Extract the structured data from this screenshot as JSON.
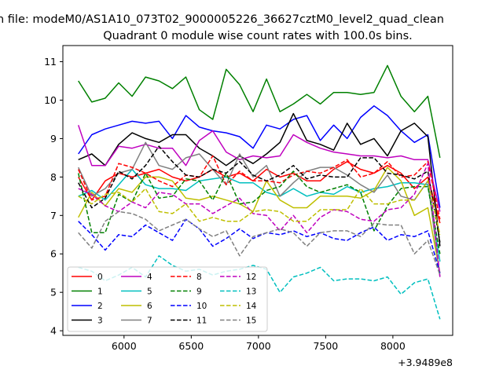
{
  "chart_data": {
    "type": "line",
    "suptitle": "n file: modeM0/AS1A10_073T02_9000005226_36627cztM0_level2_quad_clean",
    "title": "Quadrant 0 module wise count rates with 100.0s bins.",
    "xlabel": "",
    "ylabel": "",
    "x_offset_label": "+3.9489e8",
    "xlim": [
      5545,
      8445
    ],
    "ylim": [
      3.88,
      11.42
    ],
    "x_ticks": [
      6000,
      6500,
      7000,
      7500,
      8000
    ],
    "x_tick_labels": [
      "6000",
      "6500",
      "7000",
      "7500",
      "8000"
    ],
    "y_ticks": [
      4,
      5,
      6,
      7,
      8,
      9,
      10,
      11
    ],
    "y_tick_labels": [
      "4",
      "5",
      "6",
      "7",
      "8",
      "9",
      "10",
      "11"
    ],
    "legend_position": "lower-left",
    "x": [
      5660,
      5760,
      5860,
      5960,
      6060,
      6160,
      6260,
      6360,
      6460,
      6560,
      6660,
      6760,
      6860,
      6960,
      7060,
      7160,
      7260,
      7360,
      7460,
      7560,
      7660,
      7760,
      7860,
      7960,
      8060,
      8160,
      8260,
      8350
    ],
    "series": [
      {
        "name": "0",
        "color": "#ff0000",
        "dash": "solid",
        "values": [
          8.0,
          7.4,
          7.9,
          8.1,
          8.0,
          8.1,
          8.2,
          8.0,
          7.9,
          8.0,
          8.2,
          8.0,
          8.1,
          7.9,
          8.2,
          8.0,
          8.1,
          7.9,
          7.9,
          8.2,
          8.4,
          8.2,
          8.1,
          8.3,
          8.1,
          7.7,
          8.0,
          6.8
        ]
      },
      {
        "name": "1",
        "color": "#008000",
        "dash": "solid",
        "values": [
          10.5,
          9.95,
          10.05,
          10.45,
          10.1,
          10.6,
          10.5,
          10.3,
          10.6,
          9.75,
          9.5,
          10.8,
          10.4,
          9.7,
          10.55,
          9.7,
          9.9,
          10.15,
          9.9,
          10.2,
          10.2,
          10.15,
          10.2,
          10.9,
          10.1,
          9.7,
          10.1,
          8.5
        ]
      },
      {
        "name": "2",
        "color": "#0000ff",
        "dash": "solid",
        "values": [
          8.6,
          9.1,
          9.25,
          9.35,
          9.45,
          9.4,
          9.45,
          9.0,
          9.6,
          9.3,
          9.2,
          9.15,
          9.05,
          8.75,
          9.35,
          9.25,
          9.5,
          9.6,
          8.95,
          9.35,
          9.0,
          9.55,
          9.85,
          9.6,
          9.2,
          8.9,
          9.1,
          7.2
        ]
      },
      {
        "name": "3",
        "color": "#000000",
        "dash": "solid",
        "values": [
          8.45,
          8.6,
          8.3,
          8.85,
          9.15,
          9.0,
          8.9,
          9.1,
          9.1,
          8.75,
          8.55,
          8.3,
          8.55,
          8.35,
          8.6,
          8.9,
          9.65,
          8.95,
          8.85,
          8.7,
          9.4,
          8.85,
          9.0,
          8.55,
          9.2,
          9.4,
          9.05,
          6.2
        ]
      },
      {
        "name": "4",
        "color": "#bf00bf",
        "dash": "solid",
        "values": [
          9.35,
          8.3,
          8.3,
          8.8,
          8.75,
          8.85,
          8.75,
          8.75,
          8.3,
          8.95,
          9.2,
          8.65,
          8.45,
          8.55,
          8.5,
          8.55,
          9.1,
          8.9,
          8.75,
          8.65,
          8.6,
          8.55,
          8.55,
          8.5,
          8.55,
          8.45,
          8.45,
          7.1
        ]
      },
      {
        "name": "5",
        "color": "#00bfbf",
        "dash": "solid",
        "values": [
          7.5,
          7.65,
          7.4,
          7.8,
          8.2,
          7.8,
          7.7,
          7.7,
          7.65,
          7.9,
          7.95,
          8.0,
          7.85,
          7.85,
          7.6,
          7.5,
          7.7,
          7.5,
          7.6,
          7.55,
          7.75,
          7.6,
          7.7,
          7.75,
          7.85,
          7.85,
          7.8,
          5.8
        ]
      },
      {
        "name": "6",
        "color": "#bfbf00",
        "dash": "solid",
        "values": [
          6.95,
          7.6,
          7.25,
          7.7,
          7.6,
          8.0,
          8.0,
          7.9,
          7.45,
          7.4,
          7.5,
          7.4,
          7.3,
          7.1,
          7.9,
          7.4,
          7.2,
          7.2,
          7.5,
          7.5,
          7.5,
          7.45,
          7.65,
          8.25,
          7.9,
          7.0,
          7.2,
          5.5
        ]
      },
      {
        "name": "7",
        "color": "#808080",
        "dash": "solid",
        "values": [
          8.25,
          7.5,
          7.7,
          8.1,
          8.2,
          8.9,
          8.3,
          8.2,
          8.5,
          8.6,
          8.2,
          7.8,
          8.6,
          8.0,
          8.3,
          7.5,
          7.85,
          8.15,
          8.25,
          8.25,
          8.05,
          7.8,
          7.6,
          8.05,
          7.5,
          7.4,
          7.9,
          5.4
        ]
      },
      {
        "name": "8",
        "color": "#ff0000",
        "dash": "dashed",
        "values": [
          8.2,
          7.4,
          7.5,
          8.35,
          8.25,
          8.1,
          7.9,
          7.75,
          8.05,
          8.0,
          8.55,
          7.8,
          8.15,
          7.9,
          7.9,
          7.85,
          8.05,
          8.15,
          8.1,
          8.25,
          8.45,
          8.0,
          8.1,
          8.4,
          8.0,
          8.05,
          8.4,
          6.9
        ]
      },
      {
        "name": "9",
        "color": "#008000",
        "dash": "dashed",
        "values": [
          8.1,
          6.55,
          6.55,
          7.55,
          7.35,
          8.1,
          7.45,
          7.5,
          7.95,
          7.9,
          7.4,
          8.1,
          7.3,
          7.35,
          7.65,
          7.75,
          8.15,
          7.75,
          7.6,
          7.7,
          7.8,
          7.6,
          6.6,
          7.25,
          7.7,
          7.75,
          7.75,
          6.0
        ]
      },
      {
        "name": "10",
        "color": "#0000ff",
        "dash": "dashed",
        "values": [
          6.85,
          6.5,
          6.1,
          6.5,
          6.45,
          6.75,
          6.55,
          6.35,
          6.9,
          6.65,
          6.2,
          6.4,
          6.65,
          6.4,
          6.55,
          6.5,
          6.6,
          6.45,
          6.55,
          6.4,
          6.35,
          6.55,
          6.7,
          6.35,
          6.5,
          6.45,
          6.6,
          5.5
        ]
      },
      {
        "name": "11",
        "color": "#000000",
        "dash": "dashed",
        "values": [
          7.85,
          7.2,
          7.45,
          8.15,
          7.95,
          8.3,
          8.8,
          8.4,
          8.05,
          8.0,
          8.2,
          8.1,
          8.4,
          8.05,
          7.9,
          8.05,
          8.3,
          7.95,
          8.05,
          8.0,
          8.0,
          8.5,
          8.5,
          8.1,
          8.05,
          7.95,
          8.15,
          6.3
        ]
      },
      {
        "name": "12",
        "color": "#bf00bf",
        "dash": "dashed",
        "values": [
          7.7,
          7.55,
          7.25,
          7.1,
          7.35,
          7.2,
          7.6,
          7.55,
          7.3,
          7.3,
          7.05,
          7.25,
          7.45,
          7.05,
          7.0,
          6.6,
          7.0,
          6.55,
          6.95,
          7.15,
          7.1,
          6.9,
          6.85,
          7.15,
          7.2,
          7.55,
          8.35,
          5.4
        ]
      },
      {
        "name": "13",
        "color": "#00bfbf",
        "dash": "dashed",
        "values": [
          5.65,
          5.55,
          5.3,
          5.45,
          5.65,
          5.4,
          5.95,
          5.7,
          5.55,
          5.6,
          5.45,
          5.55,
          5.6,
          5.7,
          5.6,
          5.0,
          5.4,
          5.5,
          5.65,
          5.3,
          5.35,
          5.35,
          5.3,
          5.4,
          4.95,
          5.25,
          5.35,
          4.3
        ]
      },
      {
        "name": "14",
        "color": "#bfbf00",
        "dash": "dashed",
        "values": [
          7.5,
          7.3,
          7.55,
          7.6,
          7.35,
          7.7,
          7.1,
          7.05,
          7.3,
          6.85,
          6.95,
          6.85,
          6.85,
          7.1,
          7.15,
          7.1,
          6.85,
          6.85,
          7.15,
          7.15,
          7.15,
          7.7,
          7.3,
          7.3,
          7.4,
          7.4,
          7.9,
          6.5
        ]
      },
      {
        "name": "15",
        "color": "#808080",
        "dash": "dashed",
        "values": [
          6.55,
          6.15,
          6.85,
          7.1,
          7.05,
          6.9,
          6.6,
          6.75,
          6.9,
          6.65,
          6.45,
          6.6,
          5.95,
          6.45,
          6.55,
          6.65,
          6.55,
          6.2,
          6.55,
          6.6,
          6.6,
          6.45,
          6.8,
          6.75,
          6.75,
          6.0,
          6.35,
          5.45
        ]
      }
    ]
  }
}
